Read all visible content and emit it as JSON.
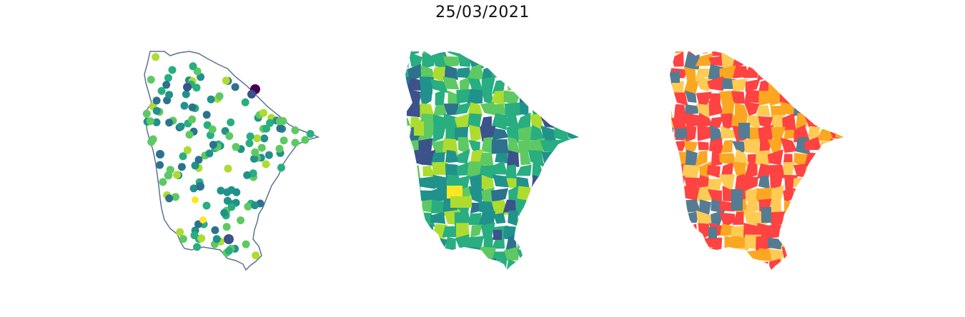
{
  "title": "25/03/2021",
  "colors": {
    "boundary": "#5b7390",
    "viridis": [
      "#440154",
      "#3b528b",
      "#2c728e",
      "#21918c",
      "#28ae80",
      "#5ec962",
      "#addc30",
      "#fde725"
    ],
    "categories": [
      "#ff4242",
      "#fca721",
      "#ffcb55",
      "#557c93"
    ]
  },
  "panels": [
    {
      "name": "points-map",
      "type": "scatter-points"
    },
    {
      "name": "choropleth-viridis",
      "type": "choropleth"
    },
    {
      "name": "choropleth-categorical",
      "type": "choropleth"
    }
  ]
}
